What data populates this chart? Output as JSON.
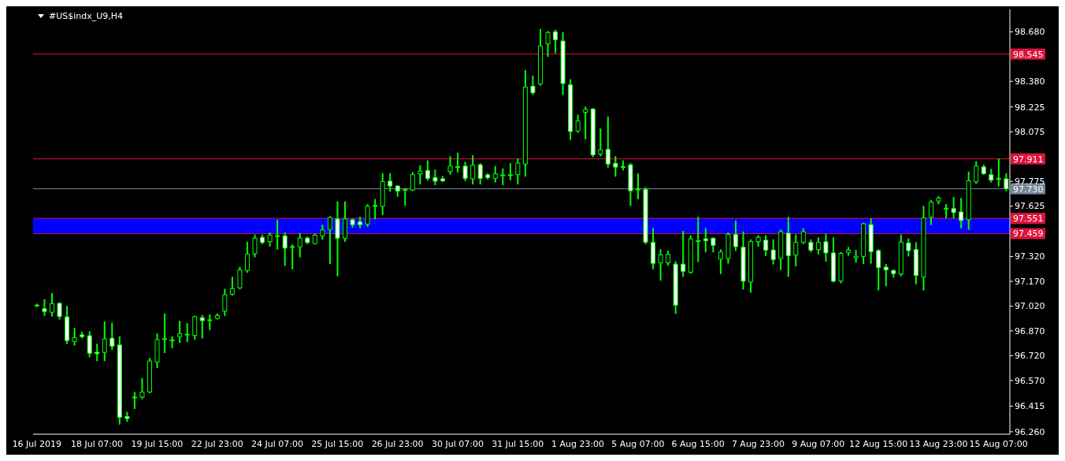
{
  "chart_data": {
    "type": "candlestick",
    "title": "#US$indx_U9,H4",
    "color": "#00ff00",
    "categories": [
      "16 Jul 2019",
      null,
      null,
      null,
      null,
      null,
      null,
      null,
      "18 Jul 07:00",
      null,
      null,
      null,
      null,
      null,
      null,
      null,
      "19 Jul 15:00",
      null,
      null,
      null,
      null,
      null,
      null,
      null,
      "22 Jul 23:00",
      null,
      null,
      null,
      null,
      null,
      null,
      null,
      "24 Jul 07:00",
      null,
      null,
      null,
      null,
      null,
      null,
      null,
      "25 Jul 15:00",
      null,
      null,
      null,
      null,
      null,
      null,
      null,
      "26 Jul 23:00",
      null,
      null,
      null,
      null,
      null,
      null,
      null,
      "30 Jul 07:00",
      null,
      null,
      null,
      null,
      null,
      null,
      null,
      "31 Jul 15:00",
      null,
      null,
      null,
      null,
      null,
      null,
      null,
      "1 Aug 23:00",
      null,
      null,
      null,
      null,
      null,
      null,
      null,
      "5 Aug 07:00",
      null,
      null,
      null,
      null,
      null,
      null,
      null,
      "6 Aug 15:00",
      null,
      null,
      null,
      null,
      null,
      null,
      null,
      "7 Aug 23:00",
      null,
      null,
      null,
      null,
      null,
      null,
      null,
      "9 Aug 07:00",
      null,
      null,
      null,
      null,
      null,
      null,
      null,
      "12 Aug 15:00",
      null,
      null,
      null,
      null,
      null,
      null,
      null,
      "13 Aug 23:00",
      null,
      null,
      null,
      null,
      null,
      null,
      null,
      "15 Aug 07:00",
      null
    ],
    "ohlc": [
      [
        97.024,
        97.03,
        97.02,
        97.026
      ],
      [
        97.004,
        97.057,
        96.966,
        96.988
      ],
      [
        96.983,
        97.094,
        96.962,
        97.034
      ],
      [
        97.037,
        97.037,
        96.943,
        96.957
      ],
      [
        96.955,
        97.016,
        96.795,
        96.812
      ],
      [
        96.807,
        96.884,
        96.786,
        96.829
      ],
      [
        96.846,
        96.86,
        96.83,
        96.836
      ],
      [
        96.841,
        96.863,
        96.715,
        96.735
      ],
      [
        96.741,
        96.787,
        96.692,
        96.732
      ],
      [
        96.74,
        96.923,
        96.692,
        96.821
      ],
      [
        96.826,
        96.915,
        96.761,
        96.778
      ],
      [
        96.785,
        96.833,
        96.308,
        96.347
      ],
      [
        96.352,
        96.376,
        96.325,
        96.34
      ],
      [
        96.465,
        96.496,
        96.402,
        96.47
      ],
      [
        96.47,
        96.581,
        96.462,
        96.499
      ],
      [
        96.501,
        96.702,
        96.498,
        96.688
      ],
      [
        96.682,
        96.85,
        96.65,
        96.817
      ],
      [
        96.82,
        96.971,
        96.741,
        96.823
      ],
      [
        96.812,
        96.833,
        96.77,
        96.815
      ],
      [
        96.836,
        96.926,
        96.802,
        96.853
      ],
      [
        96.848,
        96.912,
        96.807,
        96.85
      ],
      [
        96.843,
        96.958,
        96.822,
        96.956
      ],
      [
        96.95,
        96.962,
        96.829,
        96.932
      ],
      [
        96.935,
        96.966,
        96.88,
        96.937
      ],
      [
        96.946,
        96.971,
        96.944,
        96.963
      ],
      [
        96.99,
        97.12,
        96.964,
        97.089
      ],
      [
        97.092,
        97.193,
        97.089,
        97.126
      ],
      [
        97.131,
        97.253,
        97.126,
        97.239
      ],
      [
        97.236,
        97.405,
        97.227,
        97.335
      ],
      [
        97.338,
        97.448,
        97.32,
        97.431
      ],
      [
        97.436,
        97.448,
        97.4,
        97.405
      ],
      [
        97.41,
        97.461,
        97.385,
        97.45
      ],
      [
        97.444,
        97.538,
        97.367,
        97.446
      ],
      [
        97.445,
        97.461,
        97.268,
        97.371
      ],
      [
        97.378,
        97.388,
        97.248,
        97.38
      ],
      [
        97.379,
        97.457,
        97.32,
        97.431
      ],
      [
        97.432,
        97.436,
        97.4,
        97.405
      ],
      [
        97.398,
        97.454,
        97.398,
        97.45
      ],
      [
        97.445,
        97.508,
        97.427,
        97.48
      ],
      [
        97.484,
        97.559,
        97.279,
        97.556
      ],
      [
        97.547,
        97.649,
        97.205,
        97.431
      ],
      [
        97.431,
        97.649,
        97.414,
        97.547
      ],
      [
        97.542,
        97.545,
        97.499,
        97.513
      ],
      [
        97.53,
        97.556,
        97.496,
        97.513
      ],
      [
        97.516,
        97.632,
        97.504,
        97.624
      ],
      [
        97.626,
        97.663,
        97.55,
        97.629
      ],
      [
        97.624,
        97.82,
        97.576,
        97.774
      ],
      [
        97.776,
        97.82,
        97.718,
        97.747
      ],
      [
        97.747,
        97.747,
        97.687,
        97.716
      ],
      [
        97.724,
        97.728,
        97.632,
        97.726
      ],
      [
        97.723,
        97.826,
        97.72,
        97.815
      ],
      [
        97.82,
        97.867,
        97.761,
        97.837
      ],
      [
        97.841,
        97.897,
        97.785,
        97.793
      ],
      [
        97.798,
        97.841,
        97.756,
        97.776
      ],
      [
        97.79,
        97.803,
        97.776,
        97.778
      ],
      [
        97.834,
        97.923,
        97.82,
        97.867
      ],
      [
        97.862,
        97.943,
        97.834,
        97.864
      ],
      [
        97.867,
        97.889,
        97.781,
        97.793
      ],
      [
        97.79,
        97.928,
        97.761,
        97.872
      ],
      [
        97.875,
        97.88,
        97.761,
        97.793
      ],
      [
        97.814,
        97.82,
        97.79,
        97.798
      ],
      [
        97.793,
        97.863,
        97.773,
        97.82
      ],
      [
        97.812,
        97.849,
        97.756,
        97.814
      ],
      [
        97.812,
        97.88,
        97.786,
        97.815
      ],
      [
        97.815,
        97.909,
        97.761,
        97.885
      ],
      [
        97.88,
        98.444,
        97.808,
        98.345
      ],
      [
        98.35,
        98.41,
        98.302,
        98.311
      ],
      [
        98.364,
        98.692,
        98.359,
        98.595
      ],
      [
        98.607,
        98.68,
        98.533,
        98.675
      ],
      [
        98.68,
        98.687,
        98.555,
        98.632
      ],
      [
        98.624,
        98.672,
        98.302,
        98.367
      ],
      [
        98.359,
        98.388,
        98.031,
        98.077
      ],
      [
        98.08,
        98.174,
        98.073,
        98.14
      ],
      [
        98.192,
        98.222,
        98.034,
        98.21
      ],
      [
        98.213,
        98.213,
        97.926,
        97.935
      ],
      [
        97.94,
        98.09,
        97.931,
        97.966
      ],
      [
        97.969,
        98.162,
        97.863,
        97.88
      ],
      [
        97.884,
        97.923,
        97.808,
        97.861
      ],
      [
        97.862,
        97.897,
        97.846,
        97.864
      ],
      [
        97.875,
        97.88,
        97.632,
        97.718
      ],
      [
        97.726,
        97.817,
        97.672,
        97.728
      ],
      [
        97.726,
        97.735,
        97.4,
        97.407
      ],
      [
        97.405,
        97.487,
        97.248,
        97.279
      ],
      [
        97.282,
        97.359,
        97.179,
        97.33
      ],
      [
        97.282,
        97.35,
        97.27,
        97.333
      ],
      [
        97.274,
        97.287,
        96.978,
        97.026
      ],
      [
        97.274,
        97.47,
        97.202,
        97.231
      ],
      [
        97.226,
        97.444,
        97.221,
        97.427
      ],
      [
        97.414,
        97.556,
        97.291,
        97.416
      ],
      [
        97.427,
        97.487,
        97.35,
        97.416
      ],
      [
        97.431,
        97.431,
        97.35,
        97.388
      ],
      [
        97.305,
        97.359,
        97.219,
        97.347
      ],
      [
        97.308,
        97.461,
        97.282,
        97.453
      ],
      [
        97.453,
        97.533,
        97.359,
        97.38
      ],
      [
        97.376,
        97.467,
        97.125,
        97.171
      ],
      [
        97.166,
        97.419,
        97.106,
        97.41
      ],
      [
        97.41,
        97.444,
        97.385,
        97.436
      ],
      [
        97.419,
        97.444,
        97.328,
        97.359
      ],
      [
        97.359,
        97.419,
        97.277,
        97.302
      ],
      [
        97.308,
        97.479,
        97.243,
        97.47
      ],
      [
        97.461,
        97.556,
        97.202,
        97.325
      ],
      [
        97.33,
        97.448,
        97.265,
        97.405
      ],
      [
        97.407,
        97.487,
        97.4,
        97.47
      ],
      [
        97.405,
        97.419,
        97.35,
        97.359
      ],
      [
        97.362,
        97.431,
        97.338,
        97.405
      ],
      [
        97.409,
        97.453,
        97.294,
        97.342
      ],
      [
        97.342,
        97.431,
        97.168,
        97.171
      ],
      [
        97.173,
        97.342,
        97.163,
        97.339
      ],
      [
        97.345,
        97.373,
        97.33,
        97.359
      ],
      [
        97.312,
        97.355,
        97.287,
        97.321
      ],
      [
        97.321,
        97.52,
        97.279,
        97.518
      ],
      [
        97.513,
        97.547,
        97.282,
        97.35
      ],
      [
        97.356,
        97.359,
        97.12,
        97.253
      ],
      [
        97.256,
        97.27,
        97.145,
        97.239
      ],
      [
        97.236,
        97.236,
        97.197,
        97.217
      ],
      [
        97.214,
        97.448,
        97.205,
        97.407
      ],
      [
        97.402,
        97.424,
        97.325,
        97.356
      ],
      [
        97.362,
        97.402,
        97.157,
        97.205
      ],
      [
        97.197,
        97.622,
        97.12,
        97.554
      ],
      [
        97.559,
        97.658,
        97.516,
        97.649
      ],
      [
        97.656,
        97.68,
        97.641,
        97.673
      ],
      [
        97.61,
        97.632,
        97.556,
        97.612
      ],
      [
        97.61,
        97.675,
        97.556,
        97.586
      ],
      [
        97.59,
        97.67,
        97.496,
        97.538
      ],
      [
        97.543,
        97.829,
        97.487,
        97.779
      ],
      [
        97.772,
        97.892,
        97.765,
        97.867
      ],
      [
        97.862,
        97.872,
        97.819,
        97.821
      ],
      [
        97.815,
        97.846,
        97.773,
        97.783
      ],
      [
        97.79,
        97.909,
        97.749,
        97.792
      ],
      [
        97.79,
        97.82,
        97.721,
        97.73
      ]
    ],
    "ylim": [
      96.245,
      98.815
    ],
    "yticks": [
      {
        "value": 98.68,
        "label": "98.680"
      },
      {
        "value": 98.38,
        "label": "98.380"
      },
      98.225,
      98.075,
      97.775,
      97.625,
      {
        "value": 97.32,
        "label": "97.320"
      },
      {
        "value": 97.17,
        "label": "97.170"
      },
      {
        "value": 97.02,
        "label": "97.020"
      },
      {
        "value": 96.87,
        "label": "96.870"
      },
      {
        "value": 96.72,
        "label": "96.720"
      },
      {
        "value": 96.57,
        "label": "96.570"
      },
      96.415,
      {
        "value": 96.26,
        "label": "96.260"
      }
    ],
    "ref_lines": [
      {
        "axis": "y",
        "value": 98.545,
        "label": "98.545",
        "color": "#dc143c"
      },
      {
        "axis": "y",
        "value": 97.911,
        "label": "97.911",
        "color": "#dc143c"
      },
      {
        "axis": "y",
        "value": 97.73,
        "label": "97.730",
        "color": "#778899"
      },
      {
        "axis": "y",
        "value": 97.551,
        "label": "97.551",
        "color": "#dc143c"
      },
      {
        "axis": "y",
        "value": 97.459,
        "label": "97.459",
        "color": "#dc143c"
      }
    ],
    "bands": [
      {
        "axis": "y",
        "from": 97.459,
        "to": 97.551,
        "color": "#0000ff"
      }
    ],
    "grid": false,
    "legend": false
  }
}
